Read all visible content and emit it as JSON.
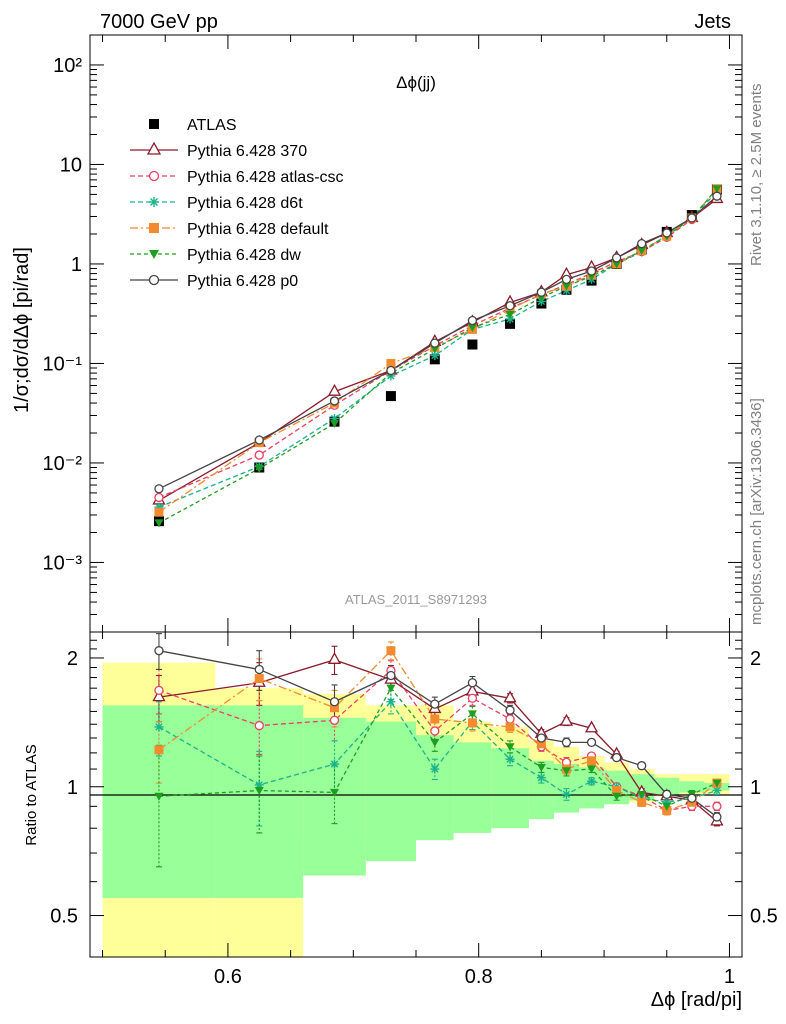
{
  "header": {
    "left": "7000 GeV pp",
    "right": "Jets"
  },
  "side_labels": {
    "top": "Rivet 3.1.10, ≥ 2.5M events",
    "bottom": "mcplots.cern.ch [arXiv:1306.3436]"
  },
  "chart_data": {
    "type": "line",
    "title": "Δϕ(jj)",
    "watermark": "ATLAS_2011_S8971293",
    "xlabel": "Δϕ [rad/pi]",
    "ylabel": "1/σ;dσ/dΔϕ [pi/rad]",
    "ratio_ylabel": "Ratio to ATLAS",
    "xlim": [
      0.49,
      1.01
    ],
    "ylim": [
      0.0002,
      200
    ],
    "ratio_ylim": [
      0.4,
      2.3
    ],
    "log_y": true,
    "x_ticks": [
      "0.6",
      "0.8",
      "1"
    ],
    "y_ticks": [
      "10⁻³",
      "10⁻²",
      "10⁻¹",
      "1",
      "10",
      "10²"
    ],
    "ratio_ticks": [
      "0.5",
      "1",
      "2"
    ],
    "legend_position": "top-left",
    "x": [
      0.545,
      0.625,
      0.685,
      0.73,
      0.765,
      0.795,
      0.825,
      0.85,
      0.87,
      0.89,
      0.91,
      0.93,
      0.95,
      0.97,
      0.99
    ],
    "bin_edges": [
      0.5,
      0.59,
      0.66,
      0.71,
      0.75,
      0.78,
      0.81,
      0.84,
      0.86,
      0.88,
      0.9,
      0.92,
      0.94,
      0.96,
      0.98,
      1.0
    ],
    "band_inner": [
      [
        0.55,
        1.55
      ],
      [
        0.55,
        1.55
      ],
      [
        0.62,
        1.45
      ],
      [
        0.67,
        1.42
      ],
      [
        0.75,
        1.32
      ],
      [
        0.78,
        1.27
      ],
      [
        0.8,
        1.23
      ],
      [
        0.84,
        1.15
      ],
      [
        0.87,
        1.13
      ],
      [
        0.89,
        1.11
      ],
      [
        0.91,
        1.09
      ],
      [
        0.93,
        1.07
      ],
      [
        0.95,
        1.05
      ],
      [
        0.97,
        1.03
      ],
      [
        0.98,
        1.02
      ]
    ],
    "band_outer": [
      [
        0.4,
        1.95
      ],
      [
        0.4,
        1.7
      ],
      [
        0.75,
        1.65
      ],
      [
        0.81,
        1.55
      ],
      [
        0.81,
        1.55
      ],
      [
        0.85,
        1.42
      ],
      [
        0.9,
        1.38
      ],
      [
        0.9,
        1.28
      ],
      [
        0.9,
        1.24
      ],
      [
        0.9,
        1.18
      ],
      [
        0.92,
        1.14
      ],
      [
        0.92,
        1.1
      ],
      [
        0.96,
        1.07
      ],
      [
        0.96,
        1.07
      ],
      [
        0.96,
        1.07
      ]
    ],
    "series": [
      {
        "name": "ATLAS",
        "color": "#000000",
        "marker": "square",
        "dash": "",
        "values": [
          0.0026,
          0.009,
          0.026,
          0.047,
          0.11,
          0.155,
          0.25,
          0.4,
          0.55,
          0.68,
          1.0,
          1.4,
          2.1,
          3.1,
          5.6
        ],
        "ratio": [
          1,
          1,
          1,
          1,
          1,
          1,
          1,
          1,
          1,
          1,
          1,
          1,
          1,
          1,
          1
        ]
      },
      {
        "name": "Pythia 6.428 370",
        "color": "#8b1a2b",
        "marker": "triangle-open",
        "dash": "",
        "values": [
          0.0042,
          0.016,
          0.052,
          0.085,
          0.165,
          0.26,
          0.41,
          0.52,
          0.78,
          0.92,
          1.15,
          1.55,
          2.05,
          2.9,
          4.5
        ],
        "ratio": [
          1.62,
          1.75,
          1.98,
          1.78,
          1.52,
          1.67,
          1.61,
          1.33,
          1.42,
          1.37,
          1.19,
          0.97,
          0.95,
          0.93,
          0.83
        ],
        "ratio_err": [
          0.2,
          0.2,
          0.15,
          0.1,
          0.06,
          0.06,
          0.04,
          0.03,
          0.03,
          0.02,
          0.02,
          0.02,
          0.02,
          0.02,
          0.02
        ]
      },
      {
        "name": "Pythia 6.428 atlas-csc",
        "color": "#e8405f",
        "marker": "circle-open",
        "dash": "5,3",
        "values": [
          0.0045,
          0.012,
          0.038,
          0.085,
          0.15,
          0.24,
          0.36,
          0.49,
          0.62,
          0.81,
          1.05,
          1.33,
          1.85,
          2.8,
          4.9
        ],
        "ratio": [
          1.68,
          1.39,
          1.43,
          1.87,
          1.35,
          1.61,
          1.44,
          1.24,
          1.14,
          1.18,
          1.0,
          0.95,
          0.88,
          0.9,
          0.9
        ],
        "ratio_err": [
          0.2,
          0.2,
          0.15,
          0.1,
          0.06,
          0.06,
          0.04,
          0.03,
          0.03,
          0.02,
          0.02,
          0.02,
          0.02,
          0.02,
          0.02
        ]
      },
      {
        "name": "Pythia 6.428 d6t",
        "color": "#1ab38c",
        "marker": "asterisk",
        "dash": "5,3",
        "values": [
          0.0036,
          0.0092,
          0.028,
          0.075,
          0.12,
          0.22,
          0.28,
          0.42,
          0.54,
          0.7,
          1.0,
          1.32,
          1.95,
          2.9,
          5.3
        ],
        "ratio": [
          1.38,
          1.01,
          1.13,
          1.58,
          1.1,
          1.42,
          1.16,
          1.05,
          0.96,
          1.03,
          1.0,
          0.94,
          0.92,
          0.94,
          0.98
        ],
        "ratio_err": [
          0.2,
          0.2,
          0.15,
          0.1,
          0.06,
          0.06,
          0.04,
          0.03,
          0.03,
          0.02,
          0.02,
          0.02,
          0.02,
          0.02,
          0.02
        ]
      },
      {
        "name": "Pythia 6.428 default",
        "color": "#f28b30",
        "marker": "square",
        "dash": "8,3,2,3",
        "values": [
          0.0032,
          0.016,
          0.04,
          0.1,
          0.145,
          0.22,
          0.35,
          0.5,
          0.6,
          0.78,
          1.0,
          1.36,
          1.9,
          2.9,
          5.7
        ],
        "ratio": [
          1.22,
          1.79,
          1.53,
          2.08,
          1.44,
          1.41,
          1.38,
          1.26,
          1.1,
          1.15,
          0.98,
          0.92,
          0.88,
          0.92,
          1.02
        ],
        "ratio_err": [
          0.2,
          0.2,
          0.15,
          0.1,
          0.06,
          0.06,
          0.04,
          0.03,
          0.03,
          0.02,
          0.02,
          0.02,
          0.02,
          0.02,
          0.02
        ]
      },
      {
        "name": "Pythia 6.428 dw",
        "color": "#1e9e1e",
        "marker": "triangle-down",
        "dash": "4,3",
        "values": [
          0.0025,
          0.0088,
          0.025,
          0.08,
          0.14,
          0.23,
          0.31,
          0.46,
          0.6,
          0.75,
          1.0,
          1.37,
          1.9,
          2.9,
          5.7
        ],
        "ratio": [
          0.95,
          0.98,
          0.97,
          1.7,
          1.27,
          1.48,
          1.24,
          1.11,
          1.09,
          1.1,
          0.95,
          0.96,
          0.9,
          0.96,
          1.02
        ],
        "ratio_err": [
          0.3,
          0.2,
          0.15,
          0.1,
          0.06,
          0.06,
          0.04,
          0.03,
          0.03,
          0.02,
          0.02,
          0.02,
          0.02,
          0.02,
          0.02
        ]
      },
      {
        "name": "Pythia 6.428 p0",
        "color": "#444444",
        "marker": "circle-open",
        "dash": "",
        "values": [
          0.0055,
          0.017,
          0.042,
          0.085,
          0.16,
          0.27,
          0.38,
          0.52,
          0.7,
          0.85,
          1.15,
          1.6,
          2.05,
          2.9,
          4.8
        ],
        "ratio": [
          2.08,
          1.88,
          1.58,
          1.82,
          1.56,
          1.75,
          1.51,
          1.3,
          1.27,
          1.27,
          1.17,
          1.12,
          0.96,
          0.94,
          0.85
        ],
        "ratio_err": [
          0.2,
          0.2,
          0.15,
          0.1,
          0.06,
          0.06,
          0.04,
          0.03,
          0.03,
          0.02,
          0.02,
          0.02,
          0.02,
          0.02,
          0.02
        ]
      }
    ]
  }
}
